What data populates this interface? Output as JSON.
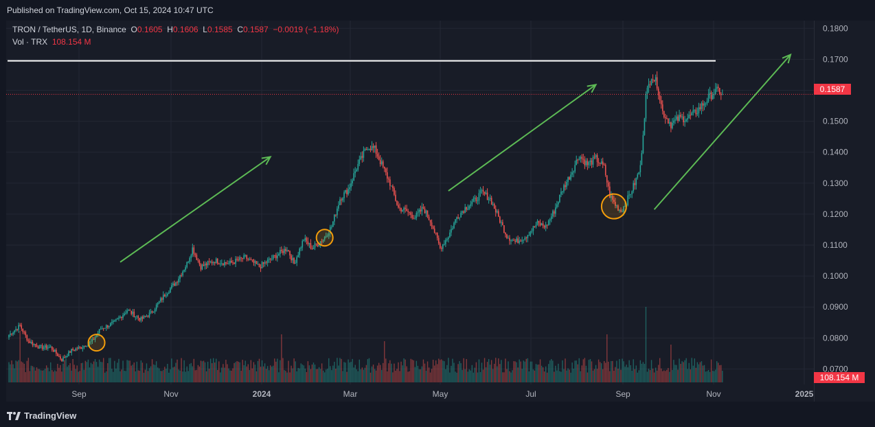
{
  "header": {
    "published": "Published on TradingView.com, Oct 15, 2024 10:47 UTC"
  },
  "legend": {
    "symbol": "TRON / TetherUS, 1D, Binance",
    "o_label": "O",
    "o": "0.1605",
    "h_label": "H",
    "h": "0.1606",
    "l_label": "L",
    "l": "0.1585",
    "c_label": "C",
    "c": "0.1587",
    "change": "−0.0019 (−1.18%)",
    "vol_label": "Vol · TRX",
    "vol": "108.154 M"
  },
  "tags": {
    "price": "0.1587",
    "volume": "108.154 M"
  },
  "footer": {
    "brand": "TradingView"
  },
  "colors": {
    "up": "#26a69a",
    "down": "#ef5350",
    "arrow": "#5dbb55",
    "circle": "#f59e0b",
    "resistance": "#ffffff",
    "bg": "#181c27"
  },
  "chart_data": {
    "type": "candlestick",
    "symbol": "TRXUSDT",
    "interval": "1D",
    "ylim": [
      0.065,
      0.1825
    ],
    "y_ticks": [
      "0.1800",
      "0.1700",
      "0.1600",
      "0.1500",
      "0.1400",
      "0.1300",
      "0.1200",
      "0.1100",
      "0.1000",
      "0.0900",
      "0.0800",
      "0.0700"
    ],
    "x_ticks": [
      "Sep",
      "Nov",
      "2024",
      "Mar",
      "May",
      "Jul",
      "Sep",
      "Nov",
      "2025"
    ],
    "resistance_level": 0.1695,
    "last_price": 0.1587,
    "price_path": [
      [
        0,
        0.081
      ],
      [
        8,
        0.084
      ],
      [
        14,
        0.079
      ],
      [
        22,
        0.077
      ],
      [
        30,
        0.077
      ],
      [
        38,
        0.073
      ],
      [
        45,
        0.076
      ],
      [
        52,
        0.077
      ],
      [
        60,
        0.079
      ],
      [
        66,
        0.083
      ],
      [
        76,
        0.085
      ],
      [
        85,
        0.089
      ],
      [
        95,
        0.086
      ],
      [
        102,
        0.088
      ],
      [
        112,
        0.094
      ],
      [
        120,
        0.098
      ],
      [
        128,
        0.104
      ],
      [
        132,
        0.109
      ],
      [
        138,
        0.103
      ],
      [
        148,
        0.105
      ],
      [
        158,
        0.104
      ],
      [
        170,
        0.106
      ],
      [
        180,
        0.103
      ],
      [
        190,
        0.106
      ],
      [
        200,
        0.109
      ],
      [
        205,
        0.104
      ],
      [
        212,
        0.112
      ],
      [
        218,
        0.109
      ],
      [
        226,
        0.112
      ],
      [
        232,
        0.116
      ],
      [
        238,
        0.125
      ],
      [
        244,
        0.128
      ],
      [
        250,
        0.135
      ],
      [
        258,
        0.142
      ],
      [
        263,
        0.141
      ],
      [
        268,
        0.136
      ],
      [
        274,
        0.13
      ],
      [
        280,
        0.122
      ],
      [
        286,
        0.121
      ],
      [
        292,
        0.119
      ],
      [
        298,
        0.122
      ],
      [
        304,
        0.117
      ],
      [
        310,
        0.109
      ],
      [
        316,
        0.113
      ],
      [
        322,
        0.119
      ],
      [
        328,
        0.122
      ],
      [
        334,
        0.124
      ],
      [
        340,
        0.127
      ],
      [
        346,
        0.125
      ],
      [
        352,
        0.119
      ],
      [
        358,
        0.113
      ],
      [
        364,
        0.111
      ],
      [
        372,
        0.113
      ],
      [
        380,
        0.117
      ],
      [
        386,
        0.116
      ],
      [
        392,
        0.121
      ],
      [
        398,
        0.128
      ],
      [
        404,
        0.133
      ],
      [
        410,
        0.139
      ],
      [
        416,
        0.136
      ],
      [
        422,
        0.138
      ],
      [
        428,
        0.135
      ],
      [
        432,
        0.126
      ],
      [
        436,
        0.123
      ],
      [
        440,
        0.121
      ],
      [
        444,
        0.124
      ],
      [
        450,
        0.13
      ],
      [
        454,
        0.135
      ],
      [
        458,
        0.158
      ],
      [
        462,
        0.165
      ],
      [
        466,
        0.162
      ],
      [
        470,
        0.153
      ],
      [
        476,
        0.149
      ],
      [
        482,
        0.151
      ],
      [
        488,
        0.151
      ],
      [
        494,
        0.153
      ],
      [
        500,
        0.156
      ],
      [
        506,
        0.159
      ],
      [
        510,
        0.16
      ],
      [
        513,
        0.1587
      ]
    ],
    "volume_spikes": [
      [
        8,
        75
      ],
      [
        196,
        70
      ],
      [
        458,
        110
      ],
      [
        430,
        70
      ],
      [
        476,
        55
      ],
      [
        270,
        60
      ]
    ],
    "annotations": {
      "arrows": [
        {
          "from": [
            80,
            0.1045
          ],
          "to": [
            188,
            0.1385
          ]
        },
        {
          "from": [
            316,
            0.1275
          ],
          "to": [
            422,
            0.1618
          ]
        },
        {
          "from": [
            464,
            0.1215
          ],
          "to": [
            562,
            0.1715
          ]
        }
      ],
      "circles": [
        {
          "x": 63,
          "y": 0.0785,
          "r": 12
        },
        {
          "x": 227,
          "y": 0.1124,
          "r": 12
        },
        {
          "x": 435,
          "y": 0.1225,
          "r": 18
        }
      ]
    }
  }
}
